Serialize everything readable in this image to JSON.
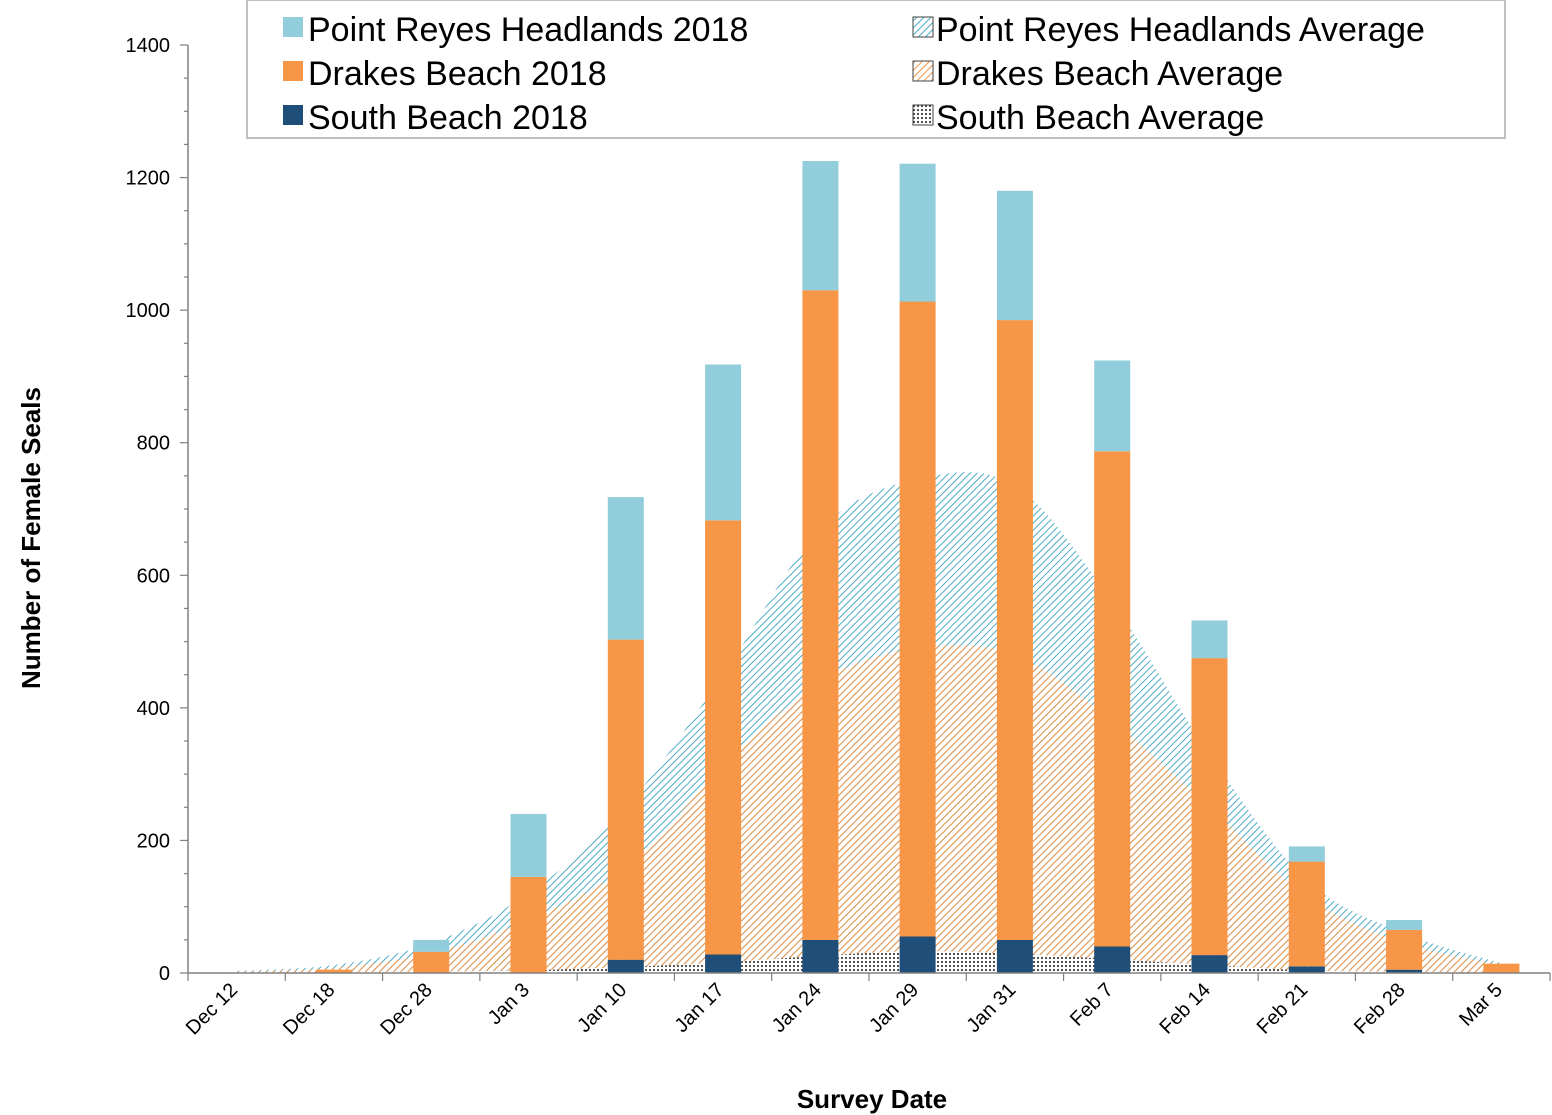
{
  "chart_data": {
    "type": "bar",
    "title": "",
    "xlabel": "Survey Date",
    "ylabel": "Number of Female Seals",
    "ylim": [
      0,
      1400
    ],
    "yticks": [
      0,
      200,
      400,
      600,
      800,
      1000,
      1200,
      1400
    ],
    "categories": [
      "Dec 12",
      "Dec 18",
      "Dec 28",
      "Jan 3",
      "Jan 10",
      "Jan 17",
      "Jan 24",
      "Jan 29",
      "Jan 31",
      "Feb 7",
      "Feb 14",
      "Feb 21",
      "Feb 28",
      "Mar 5"
    ],
    "legend_position": "top",
    "stacked_bars": [
      {
        "name": "South Beach 2018",
        "color": "#1f4e79",
        "values": [
          0,
          0,
          0,
          0,
          20,
          28,
          50,
          55,
          50,
          40,
          27,
          10,
          5,
          0
        ]
      },
      {
        "name": "Drakes Beach 2018",
        "color": "#f79646",
        "values": [
          0,
          5,
          32,
          145,
          483,
          655,
          980,
          958,
          935,
          747,
          448,
          158,
          60,
          14
        ]
      },
      {
        "name": "Point Reyes Headlands 2018",
        "color": "#92cddc",
        "values": [
          0,
          0,
          18,
          95,
          215,
          235,
          195,
          208,
          195,
          137,
          57,
          23,
          15,
          0
        ]
      }
    ],
    "average_areas": [
      {
        "name": "South Beach Average",
        "color": "#595959",
        "pattern": "dots",
        "values": [
          0,
          1,
          2,
          4,
          9,
          16,
          26,
          33,
          29,
          21,
          12,
          4,
          2,
          0
        ]
      },
      {
        "name": "Drakes Beach Average",
        "color": "#f79646",
        "pattern": "diagonal",
        "values": [
          2,
          8,
          30,
          80,
          160,
          310,
          440,
          490,
          480,
          380,
          250,
          115,
          45,
          12
        ]
      },
      {
        "name": "Point Reyes Headlands Average",
        "color": "#4bacc6",
        "pattern": "diagonal",
        "values": [
          3,
          12,
          45,
          120,
          250,
          450,
          670,
          745,
          735,
          560,
          330,
          140,
          60,
          15
        ]
      }
    ]
  },
  "legend": {
    "items": [
      {
        "label": "Point Reyes Headlands 2018",
        "kind": "solid",
        "color": "#92cddc"
      },
      {
        "label": "Point Reyes Headlands Average",
        "kind": "pattern",
        "color": "#4bacc6"
      },
      {
        "label": "Drakes Beach 2018",
        "kind": "solid",
        "color": "#f79646"
      },
      {
        "label": "Drakes Beach Average",
        "kind": "pattern",
        "color": "#f79646"
      },
      {
        "label": "South Beach 2018",
        "kind": "solid",
        "color": "#1f4e79"
      },
      {
        "label": "South Beach Average",
        "kind": "dots",
        "color": "#595959"
      }
    ]
  }
}
